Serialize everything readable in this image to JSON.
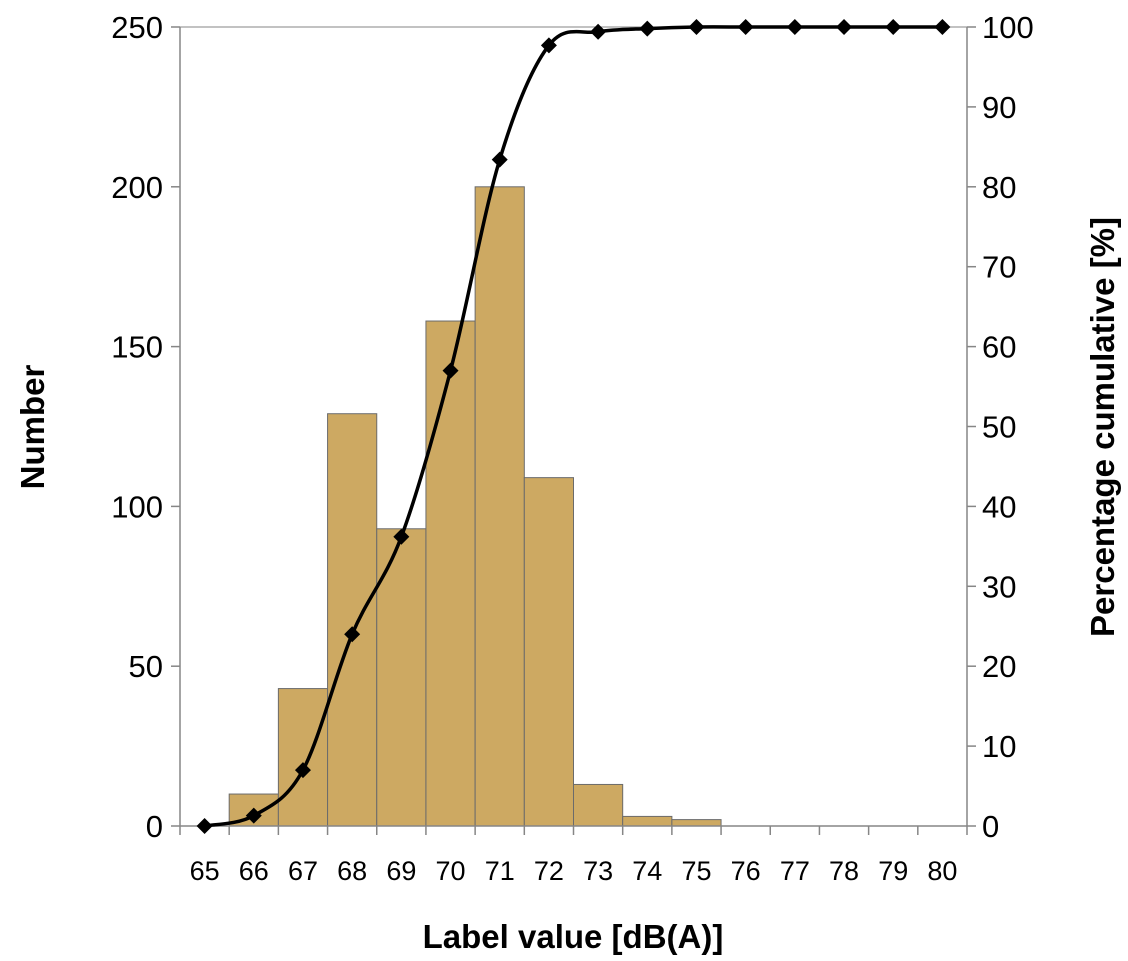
{
  "chart_data": {
    "type": "bar",
    "title": "",
    "xlabel": "Label value [dB(A)]",
    "ylabel": "Number",
    "y2label": "Percentage cumulative [%]",
    "categories": [
      "65",
      "66",
      "67",
      "68",
      "69",
      "70",
      "71",
      "72",
      "73",
      "74",
      "75",
      "76",
      "77",
      "78",
      "79",
      "80"
    ],
    "ylim": [
      0,
      250
    ],
    "y2lim": [
      0,
      100
    ],
    "yticks": [
      "0",
      "50",
      "100",
      "150",
      "200",
      "250"
    ],
    "y2ticks": [
      "0",
      "10",
      "20",
      "30",
      "40",
      "50",
      "60",
      "70",
      "80",
      "90",
      "100"
    ],
    "grid": false,
    "legend": "none",
    "series": [
      {
        "type": "bar",
        "axis": "left",
        "color": "#CDA962",
        "values": [
          0,
          10,
          43,
          129,
          93,
          158,
          200,
          109,
          13,
          3,
          2,
          0,
          0,
          0,
          0,
          0
        ]
      },
      {
        "type": "line",
        "axis": "right",
        "marker": "diamond",
        "color": "#000000",
        "values": [
          0,
          1.3,
          7.0,
          24.0,
          36.2,
          57.0,
          83.4,
          97.7,
          99.4,
          99.8,
          100,
          100,
          100,
          100,
          100,
          100
        ]
      }
    ]
  }
}
